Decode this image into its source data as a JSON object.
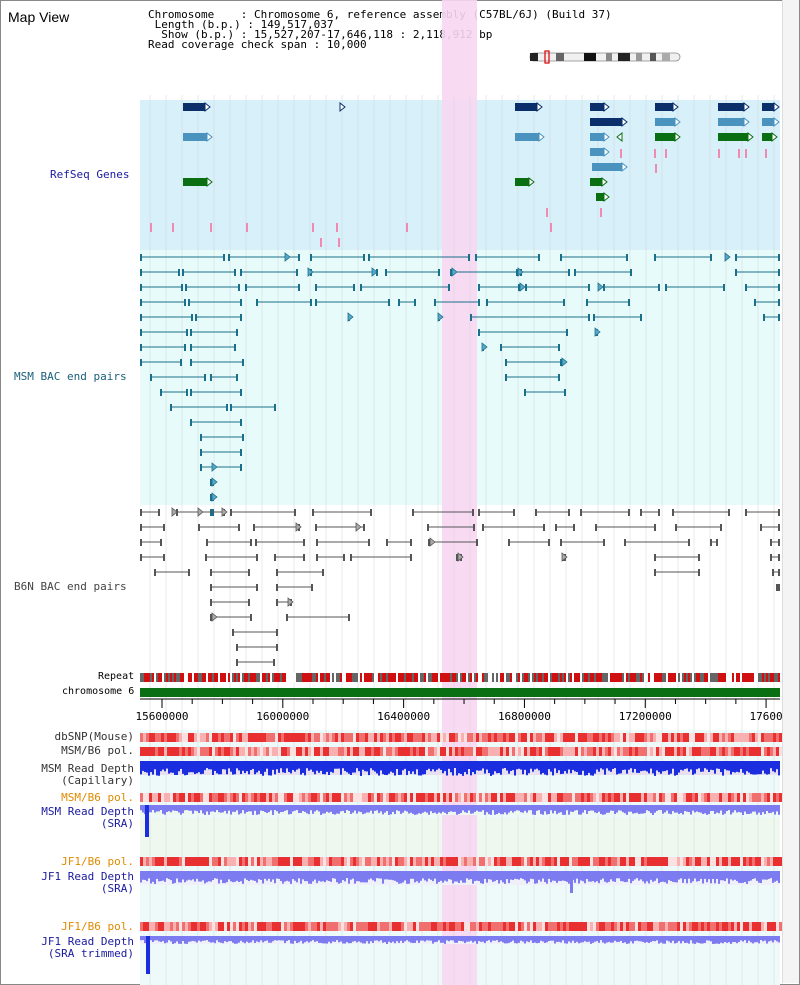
{
  "page": {
    "title": "Map View"
  },
  "info": {
    "chromosome_label": "Chromosome",
    "chromosome_value": "Chromosome 6, reference assembly (C57BL/6J) (Build 37)",
    "length_label": "Length (b.p.)",
    "length_value": "149,517,037",
    "show_label": "Show (b.p.)",
    "show_value": "15,527,207-17,646,118 : 2,118,912 bp",
    "coverage_label": "Read coverage check span",
    "coverage_value": "10,000"
  },
  "tracks": {
    "refseq": "RefSeq Genes",
    "msm_bac": "MSM BAC end pairs",
    "b6n_bac": "B6N BAC end pairs",
    "repeat": "Repeat",
    "chromosome": "chromosome 6",
    "dbsnp": "dbSNP(Mouse)",
    "msm_b6_pol_1": "MSM/B6 pol.",
    "msm_read_depth_cap_1": "MSM Read Depth",
    "msm_read_depth_cap_2": "(Capillary)",
    "msm_b6_pol_2": "MSM/B6 pol.",
    "msm_read_depth_sra_1": "MSM Read Depth",
    "msm_read_depth_sra_2": "(SRA)",
    "jf1_b6_pol_1": "JF1/B6 pol.",
    "jf1_read_depth_sra_1": "JF1 Read Depth",
    "jf1_read_depth_sra_2": "(SRA)",
    "jf1_b6_pol_2": "JF1/B6 pol.",
    "jf1_read_depth_trim_1": "JF1 Read Depth",
    "jf1_read_depth_trim_2": "(SRA trimmed)"
  },
  "axis": {
    "ticks": [
      "15600000",
      "16000000",
      "16400000",
      "16800000",
      "17200000",
      "17600"
    ],
    "start_bp": 15527207,
    "end_bp": 17646118
  },
  "colors": {
    "refseq_bg": "#d8f0fa",
    "bac_bg": "#e8fbfb",
    "highlight": "#f7d7f2",
    "gene_dark": "#0a2f6b",
    "gene_mid": "#4a93be",
    "gene_green": "#0a6e12",
    "msm_line": "#1a6f8a",
    "b6n_line": "#555555",
    "chrom_bar": "#0a6e12",
    "depth_blue": "#1a2ee0",
    "depth_light": "#7c7cf0",
    "label_blue": "#1a1aa0",
    "label_teal": "#1a5f7a",
    "label_orange": "#e08a00"
  },
  "icons": {
    "ideogram": "chromosome-ideogram-icon"
  }
}
